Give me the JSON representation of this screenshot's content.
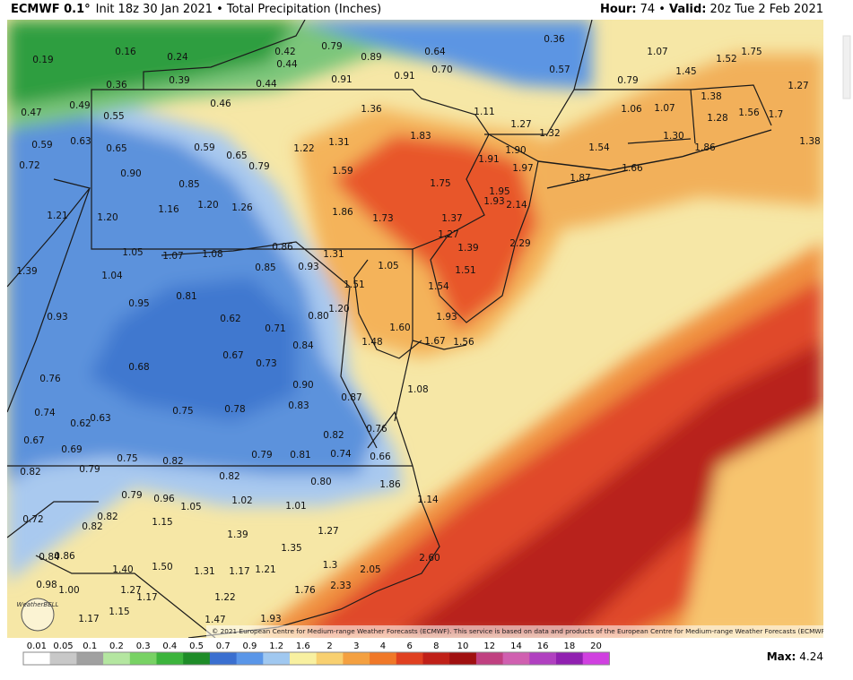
{
  "header": {
    "model": "ECMWF 0.1°",
    "run": "Init 18z 30 Jan 2021 • Total Precipitation (Inches)",
    "hour_label": "Hour:",
    "hour": "74 •",
    "valid_label": "Valid:",
    "valid": "20z Tue 2 Feb 2021"
  },
  "map_labels": [
    "0.19",
    "0.16",
    "0.24",
    "0.42",
    "0.79",
    "0.89",
    "0.64",
    "0.36",
    "1.07",
    "1.75",
    "0.36",
    "0.39",
    "0.44",
    "0.44",
    "0.91",
    "0.91",
    "0.70",
    "0.57",
    "1.45",
    "1.52",
    "0.79",
    "1.27",
    "0.47",
    "0.49",
    "0.55",
    "0.46",
    "1.36",
    "1.11",
    "1.27",
    "1.06",
    "1.07",
    "1.38",
    "1.56",
    "1.7",
    "1.28",
    "0.59",
    "0.63",
    "0.65",
    "0.59",
    "0.65",
    "1.22",
    "1.31",
    "1.83",
    "1.32",
    "1.54",
    "1.30",
    "1.86",
    "1.38",
    "0.72",
    "0.79",
    "1.90",
    "1.91",
    "1.97",
    "0.90",
    "1.59",
    "1.66",
    "1.87",
    "0.85",
    "1.75",
    "1.95",
    "1.93",
    "2.14",
    "1.21",
    "1.20",
    "1.16",
    "1.20",
    "1.26",
    "1.86",
    "1.73",
    "1.37",
    "1.27",
    "1.39",
    "2.29",
    "1.05",
    "1.07",
    "1.08",
    "0.86",
    "1.31",
    "1.39",
    "1.04",
    "0.85",
    "0.93",
    "1.51",
    "1.05",
    "1.51",
    "1.54",
    "0.81",
    "0.95",
    "1.20",
    "0.80",
    "0.62",
    "1.93",
    "0.93",
    "0.71",
    "1.60",
    "1.67",
    "1.56",
    "1.48",
    "0.84",
    "0.67",
    "0.73",
    "0.68",
    "0.76",
    "0.90",
    "1.08",
    "0.87",
    "0.74",
    "0.62",
    "0.63",
    "0.75",
    "0.78",
    "0.83",
    "0.67",
    "0.69",
    "0.82",
    "0.76",
    "0.75",
    "0.82",
    "0.79",
    "0.81",
    "0.74",
    "0.66",
    "0.82",
    "0.79",
    "0.82",
    "0.80",
    "1.86",
    "0.79",
    "0.96",
    "1.05",
    "1.02",
    "1.01",
    "1.14",
    "0.72",
    "0.82",
    "0.82",
    "1.15",
    "1.39",
    "1.27",
    "0.84",
    "0.86",
    "1.35",
    "1.40",
    "1.50",
    "1.31",
    "1.17",
    "1.21",
    "1.3",
    "2.05",
    "2.60",
    "0.98",
    "1.00",
    "1.27",
    "1.17",
    "1.22",
    "1.76",
    "2.33",
    "1.15",
    "1.17",
    "1.47",
    "1.93"
  ],
  "copyright": "© 2021 European Centre for Medium-range Weather Forecasts (ECMWF). This service is based on data and products of the European Centre for Medium-range Weather Forecasts (ECMWF).",
  "logo": "WeatherBELL",
  "colorbar": {
    "labels": [
      "0.01",
      "0.05",
      "0.1",
      "0.2",
      "0.3",
      "0.4",
      "0.5",
      "0.7",
      "0.9",
      "1.2",
      "1.6",
      "2",
      "3",
      "4",
      "6",
      "8",
      "10",
      "12",
      "14",
      "16",
      "18",
      "20"
    ]
  },
  "max": {
    "label": "Max:",
    "value": "4.24"
  }
}
